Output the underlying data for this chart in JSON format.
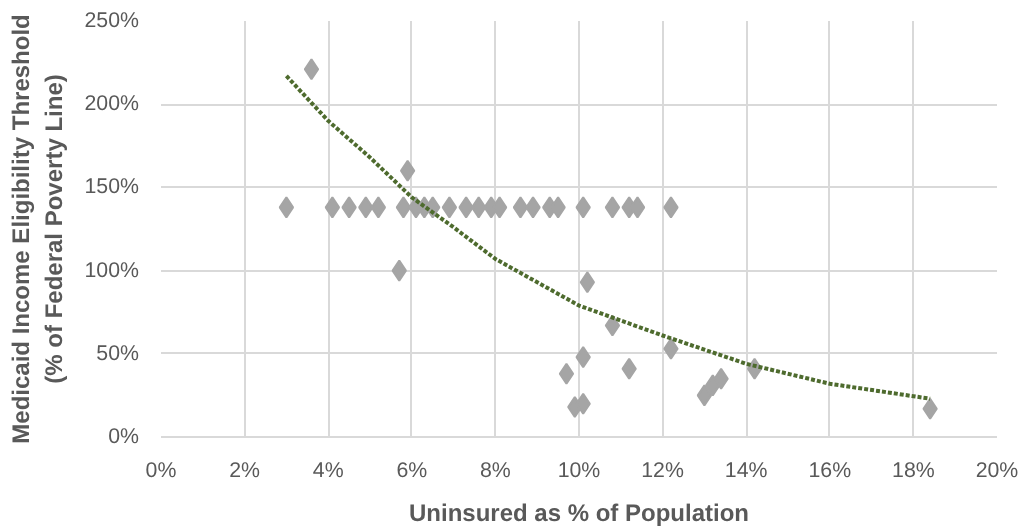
{
  "chart_data": {
    "type": "scatter",
    "xlabel": "Uninsured as % of Population",
    "ylabel": "Medicaid Income Eligibility Threshold\n(% of Federal Poverty Line)",
    "xlim": [
      0,
      20
    ],
    "ylim": [
      0,
      250
    ],
    "xticks": [
      {
        "value": 0,
        "label": "0%"
      },
      {
        "value": 2,
        "label": "2%"
      },
      {
        "value": 4,
        "label": "4%"
      },
      {
        "value": 6,
        "label": "6%"
      },
      {
        "value": 8,
        "label": "8%"
      },
      {
        "value": 10,
        "label": "10%"
      },
      {
        "value": 12,
        "label": "12%"
      },
      {
        "value": 14,
        "label": "14%"
      },
      {
        "value": 16,
        "label": "16%"
      },
      {
        "value": 18,
        "label": "18%"
      },
      {
        "value": 20,
        "label": "20%"
      }
    ],
    "yticks": [
      {
        "value": 0,
        "label": "0%"
      },
      {
        "value": 50,
        "label": "50%"
      },
      {
        "value": 100,
        "label": "100%"
      },
      {
        "value": 150,
        "label": "150%"
      },
      {
        "value": 200,
        "label": "200%"
      },
      {
        "value": 250,
        "label": "250%"
      }
    ],
    "grid": true,
    "marker": "diamond",
    "series": [
      {
        "color": "#a5a5a5",
        "x": [
          3.0,
          3.6,
          4.1,
          4.5,
          4.9,
          5.2,
          5.7,
          5.9,
          5.8,
          6.1,
          6.3,
          6.5,
          6.9,
          7.3,
          7.6,
          7.9,
          8.1,
          8.6,
          8.9,
          9.3,
          9.7,
          9.5,
          9.9,
          10.1,
          10.2,
          10.1,
          10.1,
          10.8,
          10.8,
          11.2,
          11.2,
          11.4,
          12.2,
          12.2,
          13.0,
          13.2,
          13.4,
          14.2,
          18.4
        ],
        "values": [
          138,
          221,
          138,
          138,
          138,
          138,
          100,
          160,
          138,
          138,
          138,
          138,
          138,
          138,
          138,
          138,
          138,
          138,
          138,
          138,
          38,
          138,
          18,
          20,
          93,
          138,
          48,
          67,
          138,
          41,
          138,
          138,
          138,
          53,
          25,
          31,
          35,
          41,
          17
        ]
      },
      {
        "type": "line",
        "color": "#4e6b2e",
        "line_style": "dotted",
        "marker": "none",
        "x": [
          3,
          4,
          5,
          6,
          7,
          8,
          10,
          12,
          14,
          16,
          18.4
        ],
        "values": [
          217,
          190,
          168,
          144,
          126,
          107,
          79,
          61,
          44,
          32,
          23
        ]
      }
    ]
  }
}
